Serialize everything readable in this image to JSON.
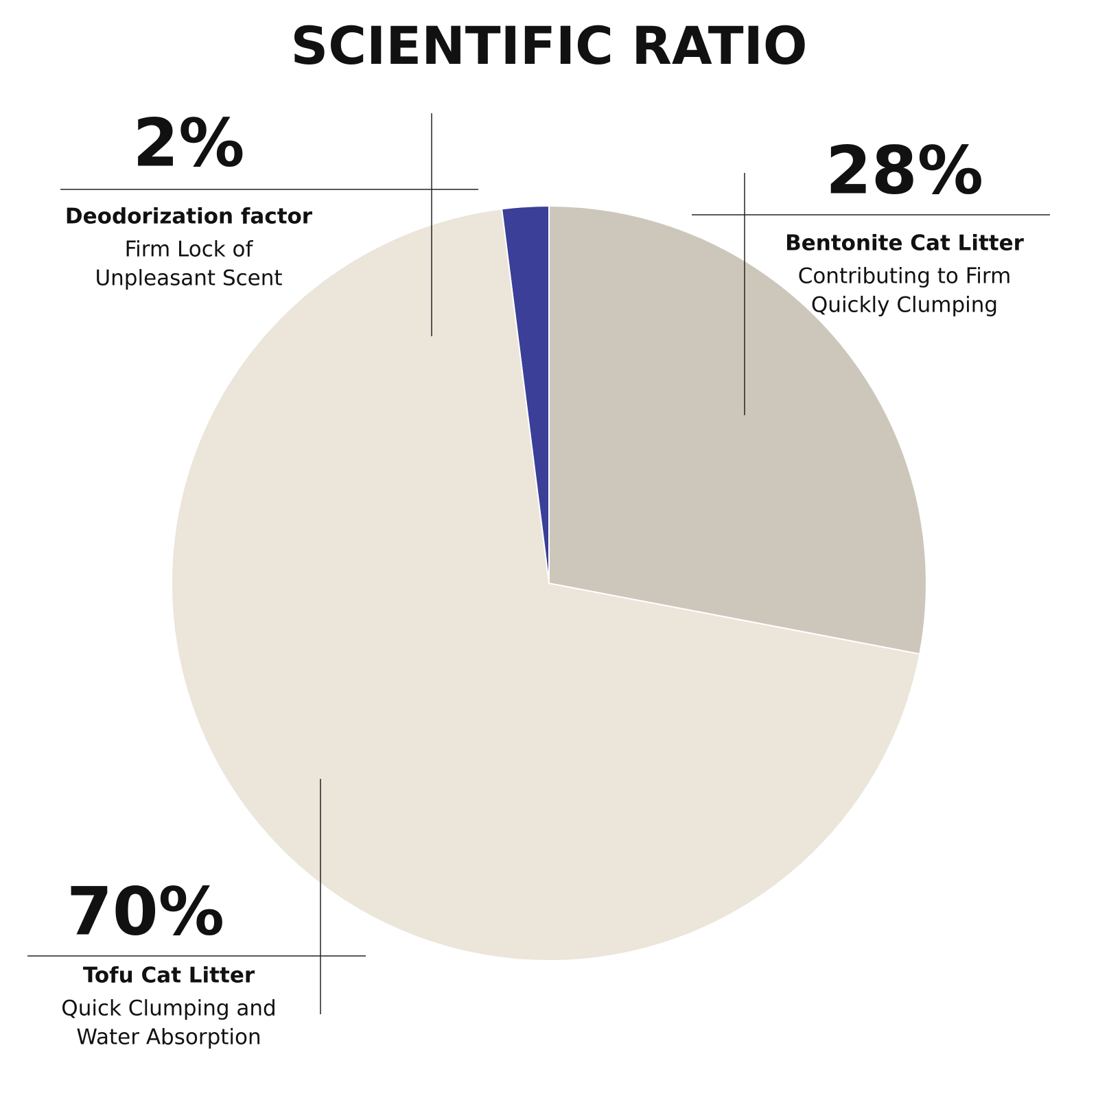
{
  "chart_data": {
    "type": "pie",
    "title": "SCIENTIFIC RATIO",
    "categories": [
      "Deodorization factor",
      "Bentonite Cat Litter",
      "Tofu Cat Litter"
    ],
    "values": [
      2,
      28,
      70
    ],
    "value_labels": [
      "2%",
      "28%",
      "70%"
    ],
    "descriptions": [
      [
        "Firm Lock of",
        "Unpleasant Scent"
      ],
      [
        "Contributing to Firm",
        "Quickly Clumping"
      ],
      [
        "Quick Clumping and",
        "Water Absorption"
      ]
    ],
    "colors": [
      "#3b3f98",
      "#cdc7bb",
      "#ebe5da"
    ]
  }
}
